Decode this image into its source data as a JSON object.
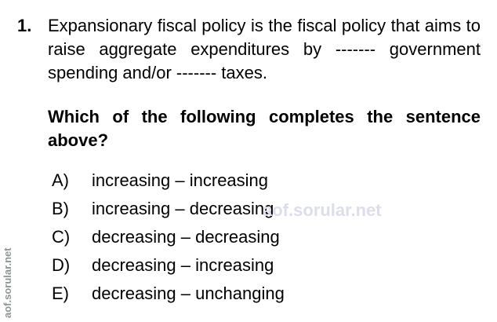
{
  "question": {
    "number": "1.",
    "stem": "Expansionary fiscal policy is the fiscal policy that aims to raise aggregate expenditures by ------- government spending and/or ------- taxes.",
    "prompt": "Which of the following completes the sentence above?",
    "options": [
      {
        "letter": "A)",
        "text": "increasing – increasing"
      },
      {
        "letter": "B)",
        "text": "increasing – decreasing"
      },
      {
        "letter": "C)",
        "text": "decreasing – decreasing"
      },
      {
        "letter": "D)",
        "text": "decreasing – increasing"
      },
      {
        "letter": "E)",
        "text": "decreasing – unchanging"
      }
    ]
  },
  "watermarks": {
    "center": "aof.sorular.net",
    "side": "aof.sorular.net"
  }
}
